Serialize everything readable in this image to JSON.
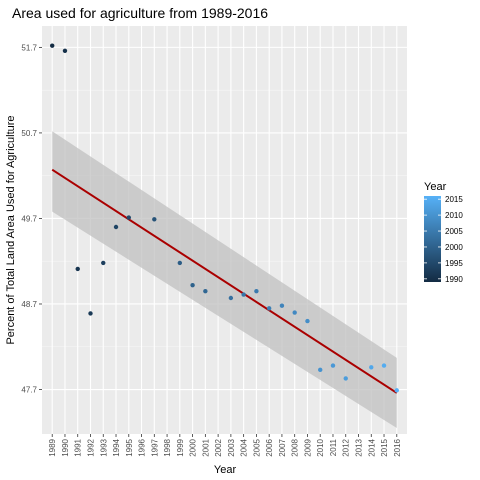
{
  "chart_data": {
    "type": "scatter",
    "title": "Area used for agriculture from 1989-2016",
    "xlabel": "Year",
    "ylabel": "Percent of Total Land Area Used for Agriculture",
    "x_ticks": [
      "1989",
      "1990",
      "1991",
      "1992",
      "1993",
      "1994",
      "1995",
      "1996",
      "1997",
      "1998",
      "1999",
      "2000",
      "2001",
      "2002",
      "2003",
      "2004",
      "2005",
      "2006",
      "2007",
      "2008",
      "2009",
      "2010",
      "2011",
      "2012",
      "2013",
      "2014",
      "2015",
      "2016"
    ],
    "y_ticks": [
      "47.7",
      "48.7",
      "49.7",
      "50.7",
      "51.7"
    ],
    "xlim": [
      1988.2,
      2016.8
    ],
    "ylim": [
      47.18,
      51.95
    ],
    "grid": true,
    "points": {
      "x": [
        1989,
        1990,
        1991,
        1992,
        1993,
        1994,
        1995,
        1997,
        1999,
        2000,
        2001,
        2003,
        2004,
        2005,
        2006,
        2007,
        2008,
        2009,
        2010,
        2011,
        2012,
        2014,
        2015,
        2016
      ],
      "y": [
        51.72,
        51.66,
        49.11,
        48.59,
        49.18,
        49.6,
        49.71,
        49.69,
        49.18,
        48.92,
        48.85,
        48.77,
        48.81,
        48.85,
        48.65,
        48.68,
        48.6,
        48.5,
        47.93,
        47.98,
        47.83,
        47.96,
        47.98,
        47.69
      ]
    },
    "trend_line": {
      "label": "linear fit",
      "x": [
        1989,
        2016
      ],
      "y": [
        50.27,
        47.66
      ],
      "ci_lower": [
        49.78,
        47.25
      ],
      "ci_upper": [
        50.72,
        48.07
      ],
      "color": "#aa0000"
    },
    "legend": {
      "title": "Year",
      "placement": "right",
      "labels": [
        "2015",
        "2010",
        "2005",
        "2000",
        "1995",
        "1990"
      ],
      "values": [
        2015,
        2010,
        2005,
        2000,
        1995,
        1990
      ],
      "color_low": "#132b43",
      "color_high": "#56b1f7",
      "range": [
        1989,
        2016
      ]
    },
    "colors": {
      "panel": "#ebebeb",
      "grid_major": "#ffffff",
      "ribbon": "#c0c0c0"
    }
  }
}
